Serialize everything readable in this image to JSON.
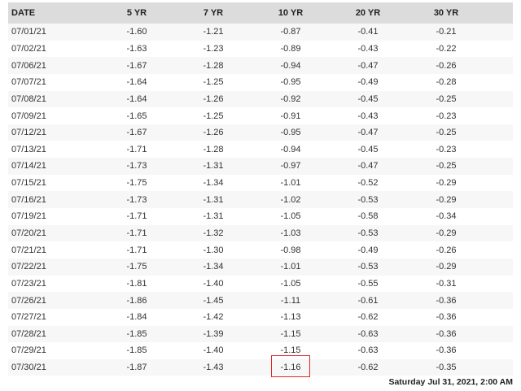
{
  "table": {
    "headers": [
      "DATE",
      "5 YR",
      "7 YR",
      "10 YR",
      "20 YR",
      "30 YR"
    ],
    "rows": [
      [
        "07/01/21",
        "-1.60",
        "-1.21",
        "-0.87",
        "-0.41",
        "-0.21"
      ],
      [
        "07/02/21",
        "-1.63",
        "-1.23",
        "-0.89",
        "-0.43",
        "-0.22"
      ],
      [
        "07/06/21",
        "-1.67",
        "-1.28",
        "-0.94",
        "-0.47",
        "-0.26"
      ],
      [
        "07/07/21",
        "-1.64",
        "-1.25",
        "-0.95",
        "-0.49",
        "-0.28"
      ],
      [
        "07/08/21",
        "-1.64",
        "-1.26",
        "-0.92",
        "-0.45",
        "-0.25"
      ],
      [
        "07/09/21",
        "-1.65",
        "-1.25",
        "-0.91",
        "-0.43",
        "-0.23"
      ],
      [
        "07/12/21",
        "-1.67",
        "-1.26",
        "-0.95",
        "-0.47",
        "-0.25"
      ],
      [
        "07/13/21",
        "-1.71",
        "-1.28",
        "-0.94",
        "-0.45",
        "-0.23"
      ],
      [
        "07/14/21",
        "-1.73",
        "-1.31",
        "-0.97",
        "-0.47",
        "-0.25"
      ],
      [
        "07/15/21",
        "-1.75",
        "-1.34",
        "-1.01",
        "-0.52",
        "-0.29"
      ],
      [
        "07/16/21",
        "-1.73",
        "-1.31",
        "-1.02",
        "-0.53",
        "-0.29"
      ],
      [
        "07/19/21",
        "-1.71",
        "-1.31",
        "-1.05",
        "-0.58",
        "-0.34"
      ],
      [
        "07/20/21",
        "-1.71",
        "-1.32",
        "-1.03",
        "-0.53",
        "-0.29"
      ],
      [
        "07/21/21",
        "-1.71",
        "-1.30",
        "-0.98",
        "-0.49",
        "-0.26"
      ],
      [
        "07/22/21",
        "-1.75",
        "-1.34",
        "-1.01",
        "-0.53",
        "-0.29"
      ],
      [
        "07/23/21",
        "-1.81",
        "-1.40",
        "-1.05",
        "-0.55",
        "-0.31"
      ],
      [
        "07/26/21",
        "-1.86",
        "-1.45",
        "-1.11",
        "-0.61",
        "-0.36"
      ],
      [
        "07/27/21",
        "-1.84",
        "-1.42",
        "-1.13",
        "-0.62",
        "-0.36"
      ],
      [
        "07/28/21",
        "-1.85",
        "-1.39",
        "-1.15",
        "-0.63",
        "-0.36"
      ],
      [
        "07/29/21",
        "-1.85",
        "-1.40",
        "-1.15",
        "-0.63",
        "-0.36"
      ],
      [
        "07/30/21",
        "-1.87",
        "-1.43",
        "-1.16",
        "-0.62",
        "-0.35"
      ]
    ],
    "highlight": {
      "row": 20,
      "column": "10 YR",
      "color": "#e0242a"
    }
  },
  "timestamp": "Saturday Jul 31, 2021, 2:00 AM",
  "colors": {
    "header_bg": "#dcdcdc",
    "stripe_bg": "#f7f7f7"
  }
}
